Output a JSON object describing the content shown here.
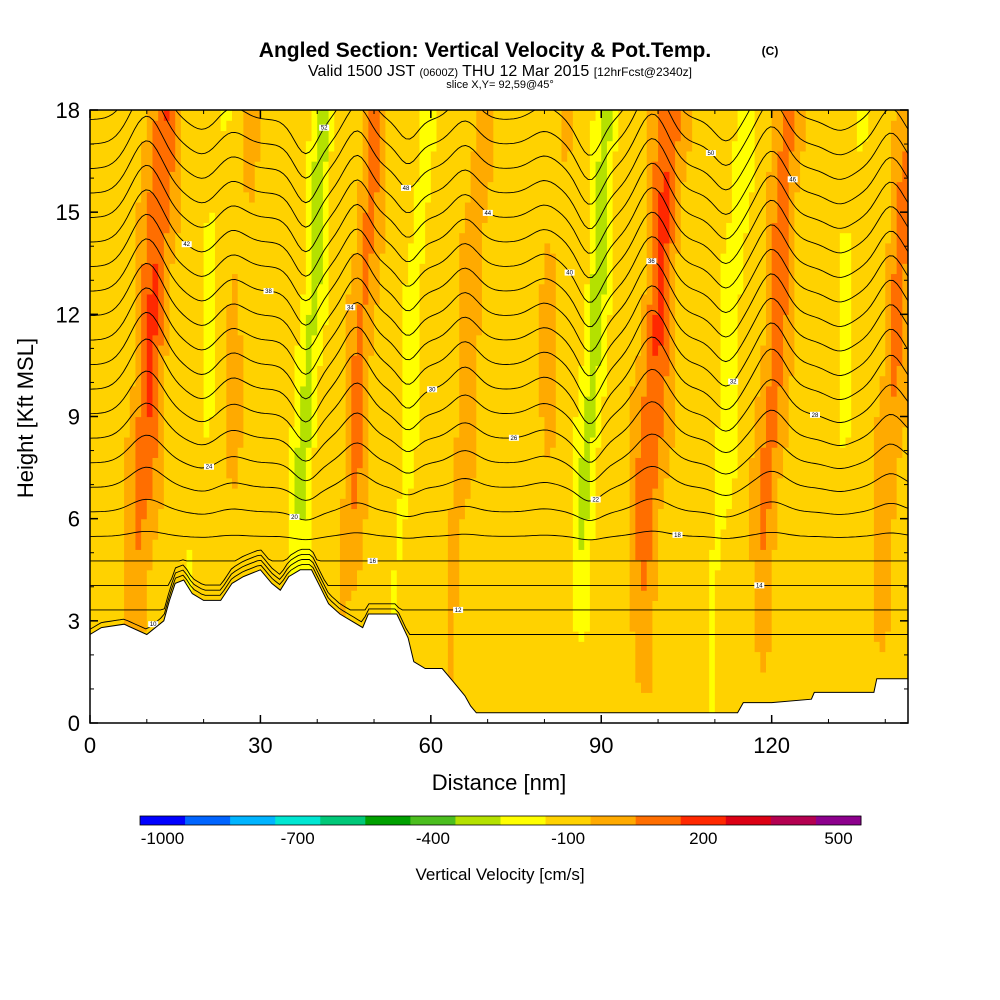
{
  "chart_data": {
    "type": "heatmap",
    "title": "Angled Section: Vertical Velocity & Pot.Temp.",
    "copyright": "(C)",
    "subtitle": {
      "prefix": "Valid 1500 JST",
      "utc": "(0600Z)",
      "date": "THU 12 Mar 2015",
      "forecast": "[12hrFcst@2340z]"
    },
    "slice_label": "slice X,Y= 92,59@45°",
    "xlabel": "Distance [nm]",
    "ylabel": "Height [Kft MSL]",
    "xlim": [
      0,
      144
    ],
    "ylim": [
      0,
      18
    ],
    "x_ticks": [
      {
        "value": 0,
        "label": "0"
      },
      {
        "value": 30,
        "label": "30"
      },
      {
        "value": 60,
        "label": "60"
      },
      {
        "value": 90,
        "label": "90"
      },
      {
        "value": 120,
        "label": "120"
      }
    ],
    "y_ticks": [
      {
        "value": 0,
        "label": "0"
      },
      {
        "value": 3,
        "label": "3"
      },
      {
        "value": 6,
        "label": "6"
      },
      {
        "value": 9,
        "label": "9"
      },
      {
        "value": 12,
        "label": "12"
      },
      {
        "value": 15,
        "label": "15"
      },
      {
        "value": 18,
        "label": "18"
      }
    ],
    "colorbar": {
      "label": "Vertical Velocity [cm/s]",
      "levels": [
        -1000,
        -900,
        -800,
        -700,
        -600,
        -500,
        -400,
        -300,
        -200,
        -100,
        0,
        100,
        200,
        300,
        400,
        500,
        600
      ],
      "colors": [
        "#0000ff",
        "#0064ff",
        "#00b4ff",
        "#00e6d2",
        "#00c878",
        "#00a000",
        "#4bbe1e",
        "#b4e100",
        "#ffff00",
        "#ffd200",
        "#ffaa00",
        "#ff6e00",
        "#ff2800",
        "#dc0014",
        "#b40050",
        "#8c008c"
      ],
      "tick_labels": [
        {
          "value": -1000,
          "label": "-1000"
        },
        {
          "value": -700,
          "label": "-700"
        },
        {
          "value": -400,
          "label": "-400"
        },
        {
          "value": -100,
          "label": "-100"
        },
        {
          "value": 200,
          "label": "200"
        },
        {
          "value": 500,
          "label": "500"
        }
      ]
    },
    "w_field": {
      "background_cm_s": -50,
      "updraft_bands": [
        {
          "x": 10,
          "w": 250,
          "width_nm": 2.5
        },
        {
          "x": 47,
          "w": 180,
          "width_nm": 2.0
        },
        {
          "x": 66,
          "w": 110,
          "width_nm": 2.0
        },
        {
          "x": 99,
          "w": 260,
          "width_nm": 2.5
        },
        {
          "x": 120,
          "w": 200,
          "width_nm": 2.2
        },
        {
          "x": 141,
          "w": 170,
          "width_nm": 2.0
        },
        {
          "x": 25,
          "w": 60,
          "width_nm": 2.0
        },
        {
          "x": 80,
          "w": 60,
          "width_nm": 2.0
        }
      ],
      "downdraft_bands": [
        {
          "x": 38,
          "w": -190,
          "width_nm": 1.8
        },
        {
          "x": 56,
          "w": -110,
          "width_nm": 1.5
        },
        {
          "x": 88,
          "w": -200,
          "width_nm": 1.8
        },
        {
          "x": 112,
          "w": -120,
          "width_nm": 1.8
        },
        {
          "x": 20,
          "w": -60,
          "width_nm": 2.0
        },
        {
          "x": 132,
          "w": -60,
          "width_nm": 2.0
        }
      ]
    },
    "terrain_kft": [
      [
        0,
        2.6
      ],
      [
        2,
        2.8
      ],
      [
        6,
        2.9
      ],
      [
        10,
        2.6
      ],
      [
        13,
        3.0
      ],
      [
        14,
        3.6
      ],
      [
        15,
        4.1
      ],
      [
        16.5,
        4.2
      ],
      [
        18,
        3.8
      ],
      [
        20,
        3.6
      ],
      [
        23,
        3.6
      ],
      [
        25,
        4.1
      ],
      [
        27,
        4.3
      ],
      [
        30,
        4.5
      ],
      [
        32,
        4.1
      ],
      [
        33.5,
        3.9
      ],
      [
        35,
        4.3
      ],
      [
        37,
        4.5
      ],
      [
        39,
        4.5
      ],
      [
        40.5,
        4.0
      ],
      [
        42,
        3.5
      ],
      [
        44,
        3.2
      ],
      [
        46,
        3.0
      ],
      [
        48,
        2.8
      ],
      [
        49,
        3.2
      ],
      [
        51,
        3.2
      ],
      [
        54,
        3.2
      ],
      [
        56,
        2.5
      ],
      [
        57,
        1.8
      ],
      [
        59,
        1.6
      ],
      [
        62,
        1.6
      ],
      [
        64,
        1.2
      ],
      [
        66,
        0.8
      ],
      [
        67,
        0.5
      ],
      [
        68,
        0.3
      ],
      [
        90,
        0.3
      ],
      [
        102,
        0.3
      ],
      [
        114,
        0.3
      ],
      [
        115,
        0.6
      ],
      [
        120,
        0.6
      ],
      [
        127,
        0.7
      ],
      [
        127.5,
        0.9
      ],
      [
        138,
        0.9
      ],
      [
        138.5,
        1.3
      ],
      [
        144,
        1.3
      ]
    ],
    "theta_contours": {
      "base_kft": 2.6,
      "spacing_kft": 0.72,
      "count": 22,
      "label_values": [
        "10",
        "12",
        "14",
        "16",
        "18",
        "20",
        "22",
        "24",
        "26",
        "28",
        "30",
        "32",
        "34",
        "36",
        "38",
        "40",
        "42",
        "44",
        "46",
        "48",
        "50",
        "52"
      ]
    }
  }
}
